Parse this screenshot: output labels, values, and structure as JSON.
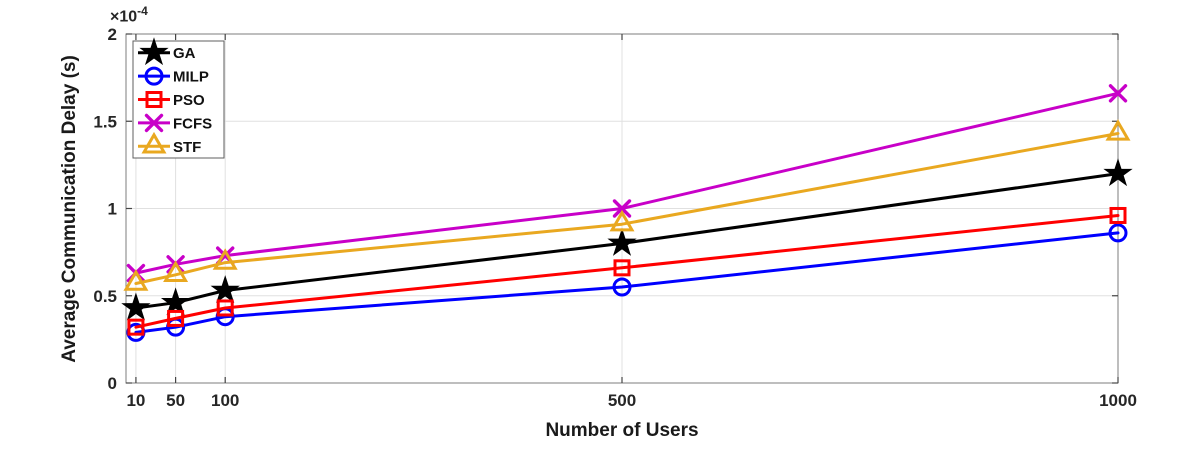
{
  "window": {
    "background": "#ffffff"
  },
  "chart_data": {
    "type": "line",
    "title": "",
    "xlabel": "Number of Users",
    "ylabel": "Average Communication Delay (s)",
    "y_axis_multiplier": {
      "base": "×10",
      "exponent": "-4"
    },
    "x": [
      10,
      50,
      100,
      500,
      1000
    ],
    "xlim": [
      0,
      1000
    ],
    "ylim": [
      0,
      2
    ],
    "xticks": [
      10,
      50,
      100,
      500,
      1000
    ],
    "xtick_labels": [
      "10",
      "50",
      "100",
      "500",
      "1000"
    ],
    "yticks": [
      0,
      0.5,
      1,
      1.5,
      2
    ],
    "ytick_labels": [
      "0",
      "0.5",
      "1",
      "1.5",
      "2"
    ],
    "y_unit_multiplier": "1e-4",
    "grid": true,
    "legend": {
      "position": "top-left",
      "border_color": "#5f5f5f",
      "background": "#ffffff"
    },
    "colors": {
      "grid": "#e0e0e0",
      "spine": "#7d7d7d",
      "tick": "#454545",
      "text": "#262626"
    },
    "series": [
      {
        "name": "GA",
        "color": "#000000",
        "marker": "star",
        "values": [
          0.43,
          0.46,
          0.53,
          0.8,
          1.2
        ]
      },
      {
        "name": "MILP",
        "color": "#0000ff",
        "marker": "circle",
        "values": [
          0.29,
          0.32,
          0.38,
          0.55,
          0.86
        ]
      },
      {
        "name": "PSO",
        "color": "#ff0000",
        "marker": "square",
        "values": [
          0.32,
          0.37,
          0.43,
          0.66,
          0.96
        ]
      },
      {
        "name": "FCFS",
        "color": "#c800c8",
        "marker": "x",
        "values": [
          0.63,
          0.68,
          0.73,
          1.0,
          1.66
        ]
      },
      {
        "name": "STF",
        "color": "#e9a820",
        "marker": "triangle",
        "values": [
          0.57,
          0.62,
          0.69,
          0.91,
          1.43
        ]
      }
    ]
  }
}
